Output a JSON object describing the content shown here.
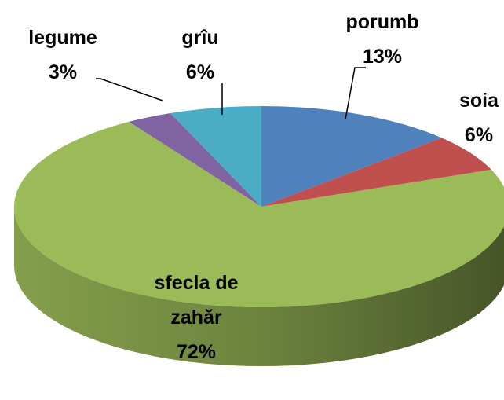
{
  "chart_data": {
    "type": "pie3d",
    "categories": [
      "porumb",
      "soia",
      "sfecla de zahăr",
      "legume",
      "grîu"
    ],
    "values": [
      13,
      6,
      72,
      3,
      6
    ],
    "value_labels": [
      "13%",
      "6%",
      "72%",
      "3%",
      "6%"
    ],
    "colors": [
      "#4f81bd",
      "#c0504d",
      "#9bbb59",
      "#8064a2",
      "#4bacc6"
    ]
  }
}
